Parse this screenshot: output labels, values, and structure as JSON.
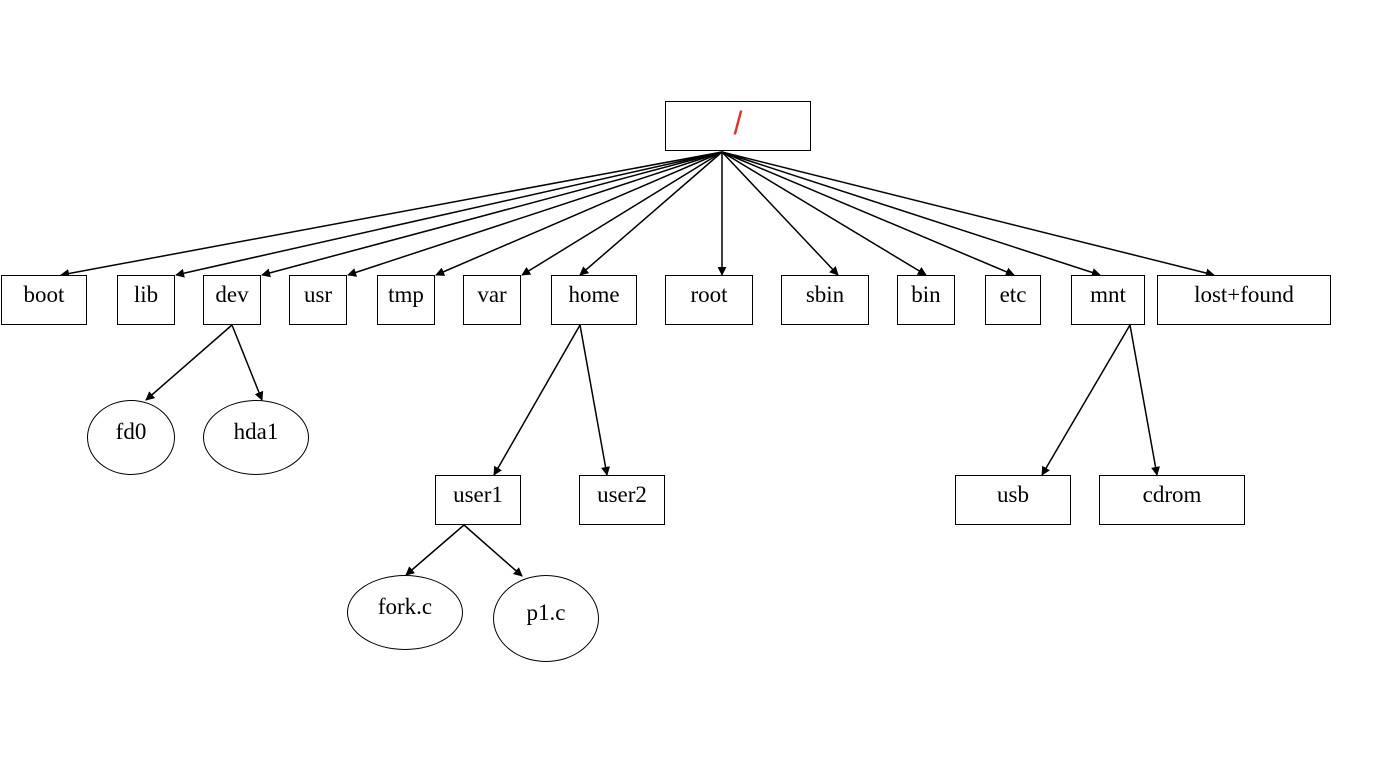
{
  "diagram": {
    "root": {
      "label": "/",
      "color": "#e0322b"
    },
    "top_dirs": [
      {
        "key": "boot",
        "label": "boot"
      },
      {
        "key": "lib",
        "label": "lib"
      },
      {
        "key": "dev",
        "label": "dev"
      },
      {
        "key": "usr",
        "label": "usr"
      },
      {
        "key": "tmp",
        "label": "tmp"
      },
      {
        "key": "var",
        "label": "var"
      },
      {
        "key": "home",
        "label": "home"
      },
      {
        "key": "root",
        "label": "root"
      },
      {
        "key": "sbin",
        "label": "sbin"
      },
      {
        "key": "bin",
        "label": "bin"
      },
      {
        "key": "etc",
        "label": "etc"
      },
      {
        "key": "mnt",
        "label": "mnt"
      },
      {
        "key": "lost-found",
        "label": "lost+found"
      }
    ],
    "dev_children": [
      {
        "key": "fd0",
        "label": "fd0"
      },
      {
        "key": "hda1",
        "label": "hda1"
      }
    ],
    "home_children": [
      {
        "key": "user1",
        "label": "user1"
      },
      {
        "key": "user2",
        "label": "user2"
      }
    ],
    "user1_children": [
      {
        "key": "fork-c",
        "label": "fork.c"
      },
      {
        "key": "p1-c",
        "label": "p1.c"
      }
    ],
    "mnt_children": [
      {
        "key": "usb",
        "label": "usb"
      },
      {
        "key": "cdrom",
        "label": "cdrom"
      }
    ]
  }
}
